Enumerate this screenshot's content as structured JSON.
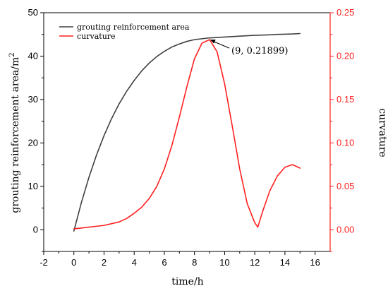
{
  "chart_data": {
    "type": "line",
    "xlabel": "time/h",
    "ylabel_left": "grouting reinforcement area/m",
    "ylabel_left_sup": "2",
    "ylabel_right": "curvature",
    "xlim": [
      -2,
      17
    ],
    "ylim_left": [
      -5,
      50
    ],
    "ylim_right": [
      -0.025,
      0.25
    ],
    "x_ticks": [
      -2,
      0,
      2,
      4,
      6,
      8,
      10,
      12,
      14,
      16
    ],
    "y_left_ticks": [
      0,
      10,
      20,
      30,
      40,
      50
    ],
    "y_right_ticks": [
      "0.00",
      "0.05",
      "0.10",
      "0.15",
      "0.20",
      "0.25"
    ],
    "legend_position": "top-left",
    "series": [
      {
        "name": "grouting reinforcement area",
        "axis": "left",
        "color": "#404040",
        "x": [
          0,
          0.5,
          1,
          1.5,
          2,
          2.5,
          3,
          3.5,
          4,
          4.5,
          5,
          5.5,
          6,
          6.5,
          7,
          7.5,
          8,
          8.5,
          9,
          9.5,
          10,
          10.5,
          11,
          11.5,
          12,
          12.5,
          13,
          13.5,
          14,
          14.5,
          15
        ],
        "values": [
          -0.3,
          6.3,
          12.1,
          17.2,
          21.7,
          25.6,
          29.0,
          31.9,
          34.4,
          36.6,
          38.4,
          39.9,
          41.1,
          42.1,
          42.8,
          43.4,
          43.8,
          44.0,
          44.2,
          44.3,
          44.4,
          44.5,
          44.6,
          44.7,
          44.8,
          44.85,
          44.9,
          45.0,
          45.05,
          45.1,
          45.2
        ]
      },
      {
        "name": "curvature",
        "axis": "right",
        "color": "#ff2020",
        "x": [
          0,
          0.5,
          1,
          1.5,
          2,
          2.5,
          3,
          3.5,
          4,
          4.5,
          5,
          5.5,
          6,
          6.5,
          7,
          7.5,
          8,
          8.5,
          9,
          9.5,
          10,
          10.5,
          11,
          11.5,
          12,
          12.2,
          12.5,
          13,
          13.5,
          14,
          14.5,
          15
        ],
        "values": [
          0.001,
          0.002,
          0.003,
          0.004,
          0.005,
          0.007,
          0.009,
          0.013,
          0.019,
          0.026,
          0.036,
          0.05,
          0.07,
          0.097,
          0.13,
          0.165,
          0.197,
          0.215,
          0.219,
          0.205,
          0.168,
          0.12,
          0.07,
          0.03,
          0.008,
          0.003,
          0.02,
          0.045,
          0.062,
          0.072,
          0.075,
          0.071
        ]
      }
    ],
    "annotation": {
      "text": "(9,  0.21899)",
      "x": 9,
      "y": 0.21899,
      "axis": "right"
    }
  },
  "colors": {
    "left_axis": "#000000",
    "right_axis": "#ff2020"
  }
}
